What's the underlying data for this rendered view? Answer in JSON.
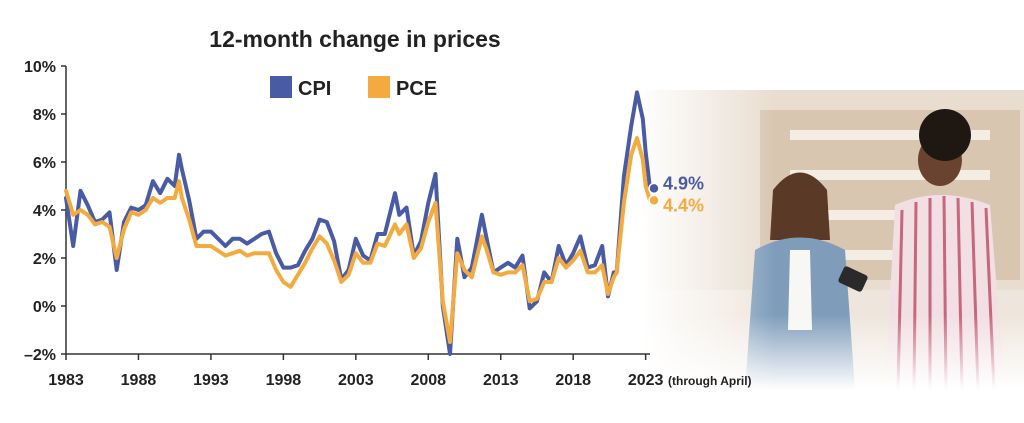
{
  "chart_data": {
    "type": "line",
    "title": "12-month change in prices",
    "xlabel": "",
    "ylabel": "",
    "x_tick_labels": [
      "1983",
      "1988",
      "1993",
      "1998",
      "2003",
      "2008",
      "2013",
      "2018",
      "2023"
    ],
    "x_tick_note": "(through April)",
    "y_tick_labels": [
      "10%",
      "8%",
      "6%",
      "4%",
      "2%",
      "0%",
      "–2%"
    ],
    "xlim": [
      1983,
      2023.3
    ],
    "ylim": [
      -2,
      10
    ],
    "grid": false,
    "legend_placement": "top-center",
    "series": [
      {
        "name": "CPI",
        "color": "#4a5ba6",
        "x": [
          1983.0,
          1983.5,
          1984.0,
          1984.5,
          1985.0,
          1985.5,
          1986.0,
          1986.5,
          1987.0,
          1987.5,
          1988.0,
          1988.5,
          1989.0,
          1989.5,
          1990.0,
          1990.5,
          1990.8,
          1991.0,
          1991.5,
          1992.0,
          1992.5,
          1993.0,
          1993.5,
          1994.0,
          1994.5,
          1995.0,
          1995.5,
          1996.0,
          1996.5,
          1997.0,
          1997.5,
          1998.0,
          1998.5,
          1999.0,
          1999.5,
          2000.0,
          2000.5,
          2001.0,
          2001.5,
          2002.0,
          2002.5,
          2003.0,
          2003.5,
          2004.0,
          2004.5,
          2005.0,
          2005.7,
          2006.0,
          2006.5,
          2007.0,
          2007.5,
          2008.0,
          2008.5,
          2009.0,
          2009.5,
          2010.0,
          2010.5,
          2011.0,
          2011.7,
          2012.0,
          2012.5,
          2013.0,
          2013.5,
          2014.0,
          2014.5,
          2015.0,
          2015.5,
          2016.0,
          2016.5,
          2017.0,
          2017.5,
          2018.0,
          2018.5,
          2019.0,
          2019.5,
          2020.0,
          2020.4,
          2020.8,
          2021.0,
          2021.5,
          2022.0,
          2022.4,
          2022.8,
          2023.0,
          2023.3
        ],
        "values": [
          4.5,
          2.5,
          4.8,
          4.2,
          3.5,
          3.6,
          3.9,
          1.5,
          3.5,
          4.1,
          4.0,
          4.2,
          5.2,
          4.7,
          5.3,
          5.0,
          6.3,
          5.7,
          4.4,
          2.8,
          3.1,
          3.1,
          2.8,
          2.5,
          2.8,
          2.8,
          2.6,
          2.8,
          3.0,
          3.1,
          2.2,
          1.6,
          1.6,
          1.7,
          2.3,
          2.8,
          3.6,
          3.5,
          2.7,
          1.1,
          1.5,
          2.8,
          2.1,
          1.9,
          3.0,
          3.0,
          4.7,
          3.8,
          4.1,
          2.1,
          2.7,
          4.3,
          5.5,
          0.0,
          -2.0,
          2.8,
          1.2,
          1.6,
          3.8,
          2.9,
          1.4,
          1.6,
          1.8,
          1.6,
          2.1,
          -0.1,
          0.2,
          1.4,
          1.0,
          2.5,
          1.7,
          2.2,
          2.9,
          1.6,
          1.7,
          2.5,
          0.4,
          1.4,
          1.4,
          5.4,
          7.5,
          8.9,
          7.8,
          6.4,
          4.9
        ]
      },
      {
        "name": "PCE",
        "color": "#f3ab40",
        "x": [
          1983.0,
          1983.5,
          1984.0,
          1984.5,
          1985.0,
          1985.5,
          1986.0,
          1986.5,
          1987.0,
          1987.5,
          1988.0,
          1988.5,
          1989.0,
          1989.5,
          1990.0,
          1990.5,
          1990.8,
          1991.0,
          1991.5,
          1992.0,
          1992.5,
          1993.0,
          1993.5,
          1994.0,
          1994.5,
          1995.0,
          1995.5,
          1996.0,
          1996.5,
          1997.0,
          1997.5,
          1998.0,
          1998.5,
          1999.0,
          1999.5,
          2000.0,
          2000.5,
          2001.0,
          2001.5,
          2002.0,
          2002.5,
          2003.0,
          2003.5,
          2004.0,
          2004.5,
          2005.0,
          2005.7,
          2006.0,
          2006.5,
          2007.0,
          2007.5,
          2008.0,
          2008.5,
          2009.0,
          2009.5,
          2010.0,
          2010.5,
          2011.0,
          2011.7,
          2012.0,
          2012.5,
          2013.0,
          2013.5,
          2014.0,
          2014.5,
          2015.0,
          2015.5,
          2016.0,
          2016.5,
          2017.0,
          2017.5,
          2018.0,
          2018.5,
          2019.0,
          2019.5,
          2020.0,
          2020.4,
          2020.8,
          2021.0,
          2021.5,
          2022.0,
          2022.4,
          2022.8,
          2023.0,
          2023.3
        ],
        "values": [
          4.8,
          3.8,
          4.0,
          3.8,
          3.4,
          3.5,
          3.3,
          2.0,
          3.2,
          3.9,
          3.8,
          4.0,
          4.5,
          4.3,
          4.5,
          4.5,
          5.2,
          4.5,
          3.6,
          2.5,
          2.5,
          2.5,
          2.3,
          2.1,
          2.2,
          2.3,
          2.1,
          2.2,
          2.2,
          2.2,
          1.5,
          1.0,
          0.8,
          1.3,
          1.8,
          2.4,
          2.9,
          2.6,
          1.9,
          1.0,
          1.3,
          2.2,
          1.8,
          1.8,
          2.6,
          2.5,
          3.4,
          3.0,
          3.4,
          2.0,
          2.4,
          3.5,
          4.3,
          0.2,
          -1.5,
          2.2,
          1.5,
          1.2,
          2.9,
          2.4,
          1.4,
          1.3,
          1.4,
          1.4,
          1.7,
          0.2,
          0.3,
          1.0,
          1.0,
          2.0,
          1.6,
          1.9,
          2.3,
          1.4,
          1.4,
          1.7,
          0.5,
          1.2,
          1.4,
          4.3,
          6.3,
          7.0,
          6.1,
          5.0,
          4.4
        ]
      }
    ],
    "end_labels": {
      "CPI": "4.9%",
      "PCE": "4.4%"
    }
  }
}
